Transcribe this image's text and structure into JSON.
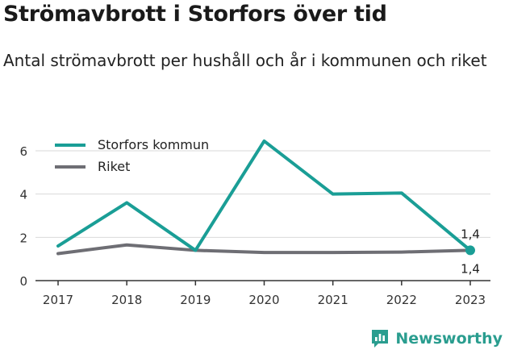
{
  "title": "Strömavbrott i Storfors över tid",
  "subtitle": "Antal strömavbrott per hushåll och år i kommunen och riket",
  "brand": {
    "name": "Newsworthy",
    "icon": "newsworthy-logo-icon"
  },
  "colors": {
    "storfors": "#1a9e96",
    "riket": "#6e6e74",
    "grid": "#d9d9d9",
    "axis": "#333333"
  },
  "chart_data": {
    "type": "line",
    "x": [
      "2017",
      "2018",
      "2019",
      "2020",
      "2021",
      "2022",
      "2023"
    ],
    "series": [
      {
        "name": "Storfors kommun",
        "values": [
          1.6,
          3.6,
          1.4,
          6.45,
          4.0,
          4.05,
          1.4
        ]
      },
      {
        "name": "Riket",
        "values": [
          1.25,
          1.65,
          1.4,
          1.3,
          1.3,
          1.32,
          1.4
        ]
      }
    ],
    "ylim": [
      0,
      6.5
    ],
    "yticks": [
      "0",
      "2",
      "4",
      "6"
    ],
    "ytick_values": [
      0,
      2,
      4,
      6
    ],
    "grid": true,
    "legend": "top-left",
    "annotations": [
      {
        "series": "Storfors kommun",
        "x": "2023",
        "label": "1,4",
        "position": "above"
      },
      {
        "series": "Riket",
        "x": "2023",
        "label": "1,4",
        "position": "below"
      }
    ]
  }
}
